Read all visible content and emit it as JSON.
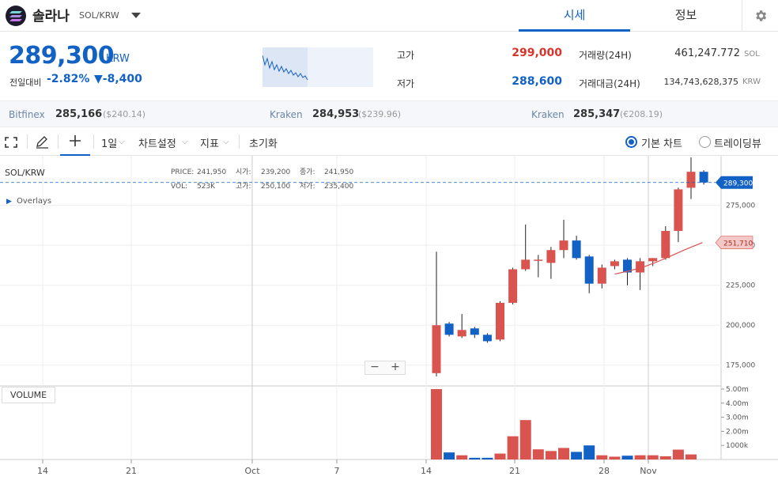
{
  "header": {
    "coin_name": "솔라나",
    "pair": "SOL/KRW",
    "tabs": [
      {
        "label": "시세",
        "active": true
      },
      {
        "label": "정보",
        "active": false
      }
    ]
  },
  "price": {
    "current": "289,300",
    "unit": "KRW",
    "change_label": "전일대비",
    "change_pct": "-2.82%",
    "change_abs": "▼-8,400",
    "high_label": "고가",
    "high": "299,000",
    "low_label": "저가",
    "low": "288,600",
    "volume_label": "거래량(24H)",
    "volume": "461,247.772",
    "volume_unit": "SOL",
    "amount_label": "거래대금(24H)",
    "amount": "134,743,628,375",
    "amount_unit": "KRW"
  },
  "exchanges": [
    {
      "name": "Bitfinex",
      "price": "285,166",
      "sub": "($240.14)"
    },
    {
      "name": "Kraken",
      "price": "284,953",
      "sub": "($239.96)"
    },
    {
      "name": "Kraken",
      "price": "285,347",
      "sub": "(€208.19)"
    }
  ],
  "toolbar": {
    "interval": "1일",
    "chart_settings": "차트설정",
    "indicators": "지표",
    "reset": "초기화",
    "basic_chart": "기본 차트",
    "trading_view": "트레이딩뷰"
  },
  "legend": {
    "symbol": "SOL/KRW",
    "price_label": "PRICE:",
    "price": "241,950",
    "open_label": "시가:",
    "open": "239,200",
    "close_label": "종가:",
    "close": "241,950",
    "vol_label": "VOL:",
    "vol": "523K",
    "high_label": "고가:",
    "high": "250,100",
    "low_label": "저가:",
    "low": "235,400",
    "overlays": "Overlays"
  },
  "volume_label": "VOLUME",
  "zoom": {
    "minus": "−",
    "plus": "+"
  },
  "colors": {
    "up": "#d9534f",
    "down": "#1261c4",
    "accent": "#1261c4"
  },
  "chart_data": {
    "type": "candlestick",
    "x_ticks": [
      "14",
      "21",
      "Oct",
      "7",
      "14",
      "21",
      "28",
      "Nov"
    ],
    "y_ticks": [
      "275,000",
      "250,000",
      "225,000",
      "200,000",
      "175,000"
    ],
    "ylim": [
      162000,
      306000
    ],
    "current_price_tag": "289,300",
    "ma_tag": "251,710",
    "volume_ticks": [
      "5.00m",
      "4.00m",
      "3.00m",
      "2.00m",
      "1000k"
    ],
    "volume_ylim": [
      0,
      5000000
    ],
    "candles": [
      {
        "o": 170000,
        "h": 246000,
        "l": 168000,
        "c": 200000,
        "v": 5000000
      },
      {
        "o": 201000,
        "h": 202000,
        "l": 193000,
        "c": 194000,
        "v": 500000
      },
      {
        "o": 193000,
        "h": 207000,
        "l": 192000,
        "c": 197000,
        "v": 300000
      },
      {
        "o": 198000,
        "h": 199000,
        "l": 192000,
        "c": 194000,
        "v": 120000
      },
      {
        "o": 194000,
        "h": 195000,
        "l": 189000,
        "c": 190000,
        "v": 120000
      },
      {
        "o": 191000,
        "h": 215000,
        "l": 190000,
        "c": 214000,
        "v": 420000
      },
      {
        "o": 214000,
        "h": 236000,
        "l": 213000,
        "c": 235000,
        "v": 1650000
      },
      {
        "o": 235000,
        "h": 263000,
        "l": 234000,
        "c": 241000,
        "v": 2800000
      },
      {
        "o": 241000,
        "h": 244000,
        "l": 230000,
        "c": 241000,
        "v": 720000
      },
      {
        "o": 239000,
        "h": 249000,
        "l": 229000,
        "c": 247000,
        "v": 600000
      },
      {
        "o": 247000,
        "h": 266000,
        "l": 242000,
        "c": 253000,
        "v": 820000
      },
      {
        "o": 253000,
        "h": 256000,
        "l": 241000,
        "c": 242000,
        "v": 540000
      },
      {
        "o": 243000,
        "h": 244000,
        "l": 220000,
        "c": 226000,
        "v": 1000000
      },
      {
        "o": 226000,
        "h": 238000,
        "l": 223000,
        "c": 236000,
        "v": 300000
      },
      {
        "o": 237000,
        "h": 241000,
        "l": 235000,
        "c": 240000,
        "v": 200000
      },
      {
        "o": 241000,
        "h": 242000,
        "l": 225000,
        "c": 233000,
        "v": 270000
      },
      {
        "o": 233000,
        "h": 242000,
        "l": 222000,
        "c": 240000,
        "v": 300000
      },
      {
        "o": 240000,
        "h": 242000,
        "l": 237000,
        "c": 242000,
        "v": 300000
      },
      {
        "o": 242000,
        "h": 262000,
        "l": 241000,
        "c": 259000,
        "v": 230000
      },
      {
        "o": 259000,
        "h": 286000,
        "l": 252000,
        "c": 285000,
        "v": 700000
      },
      {
        "o": 286000,
        "h": 305000,
        "l": 279000,
        "c": 296000,
        "v": 360000
      },
      {
        "o": 296000,
        "h": 297000,
        "l": 288000,
        "c": 289300,
        "v": 0
      }
    ],
    "ma": [
      232000,
      234000,
      236500,
      240000,
      244000,
      248000,
      251710
    ]
  }
}
